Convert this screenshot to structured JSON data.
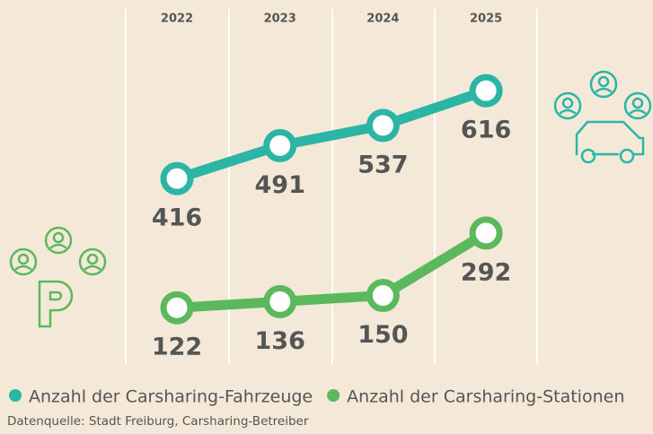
{
  "chart_data": {
    "type": "line",
    "categories": [
      "2022",
      "2023",
      "2024",
      "2025"
    ],
    "series": [
      {
        "name": "Anzahl der Carsharing-Fahrzeuge",
        "color": "#2bb5a5",
        "values": [
          416,
          491,
          537,
          616
        ]
      },
      {
        "name": "Anzahl der Carsharing-Stationen",
        "color": "#5cb85c",
        "values": [
          122,
          136,
          150,
          292
        ]
      }
    ],
    "source": "Datenquelle: Stadt Freiburg, Carsharing-Betreiber"
  }
}
